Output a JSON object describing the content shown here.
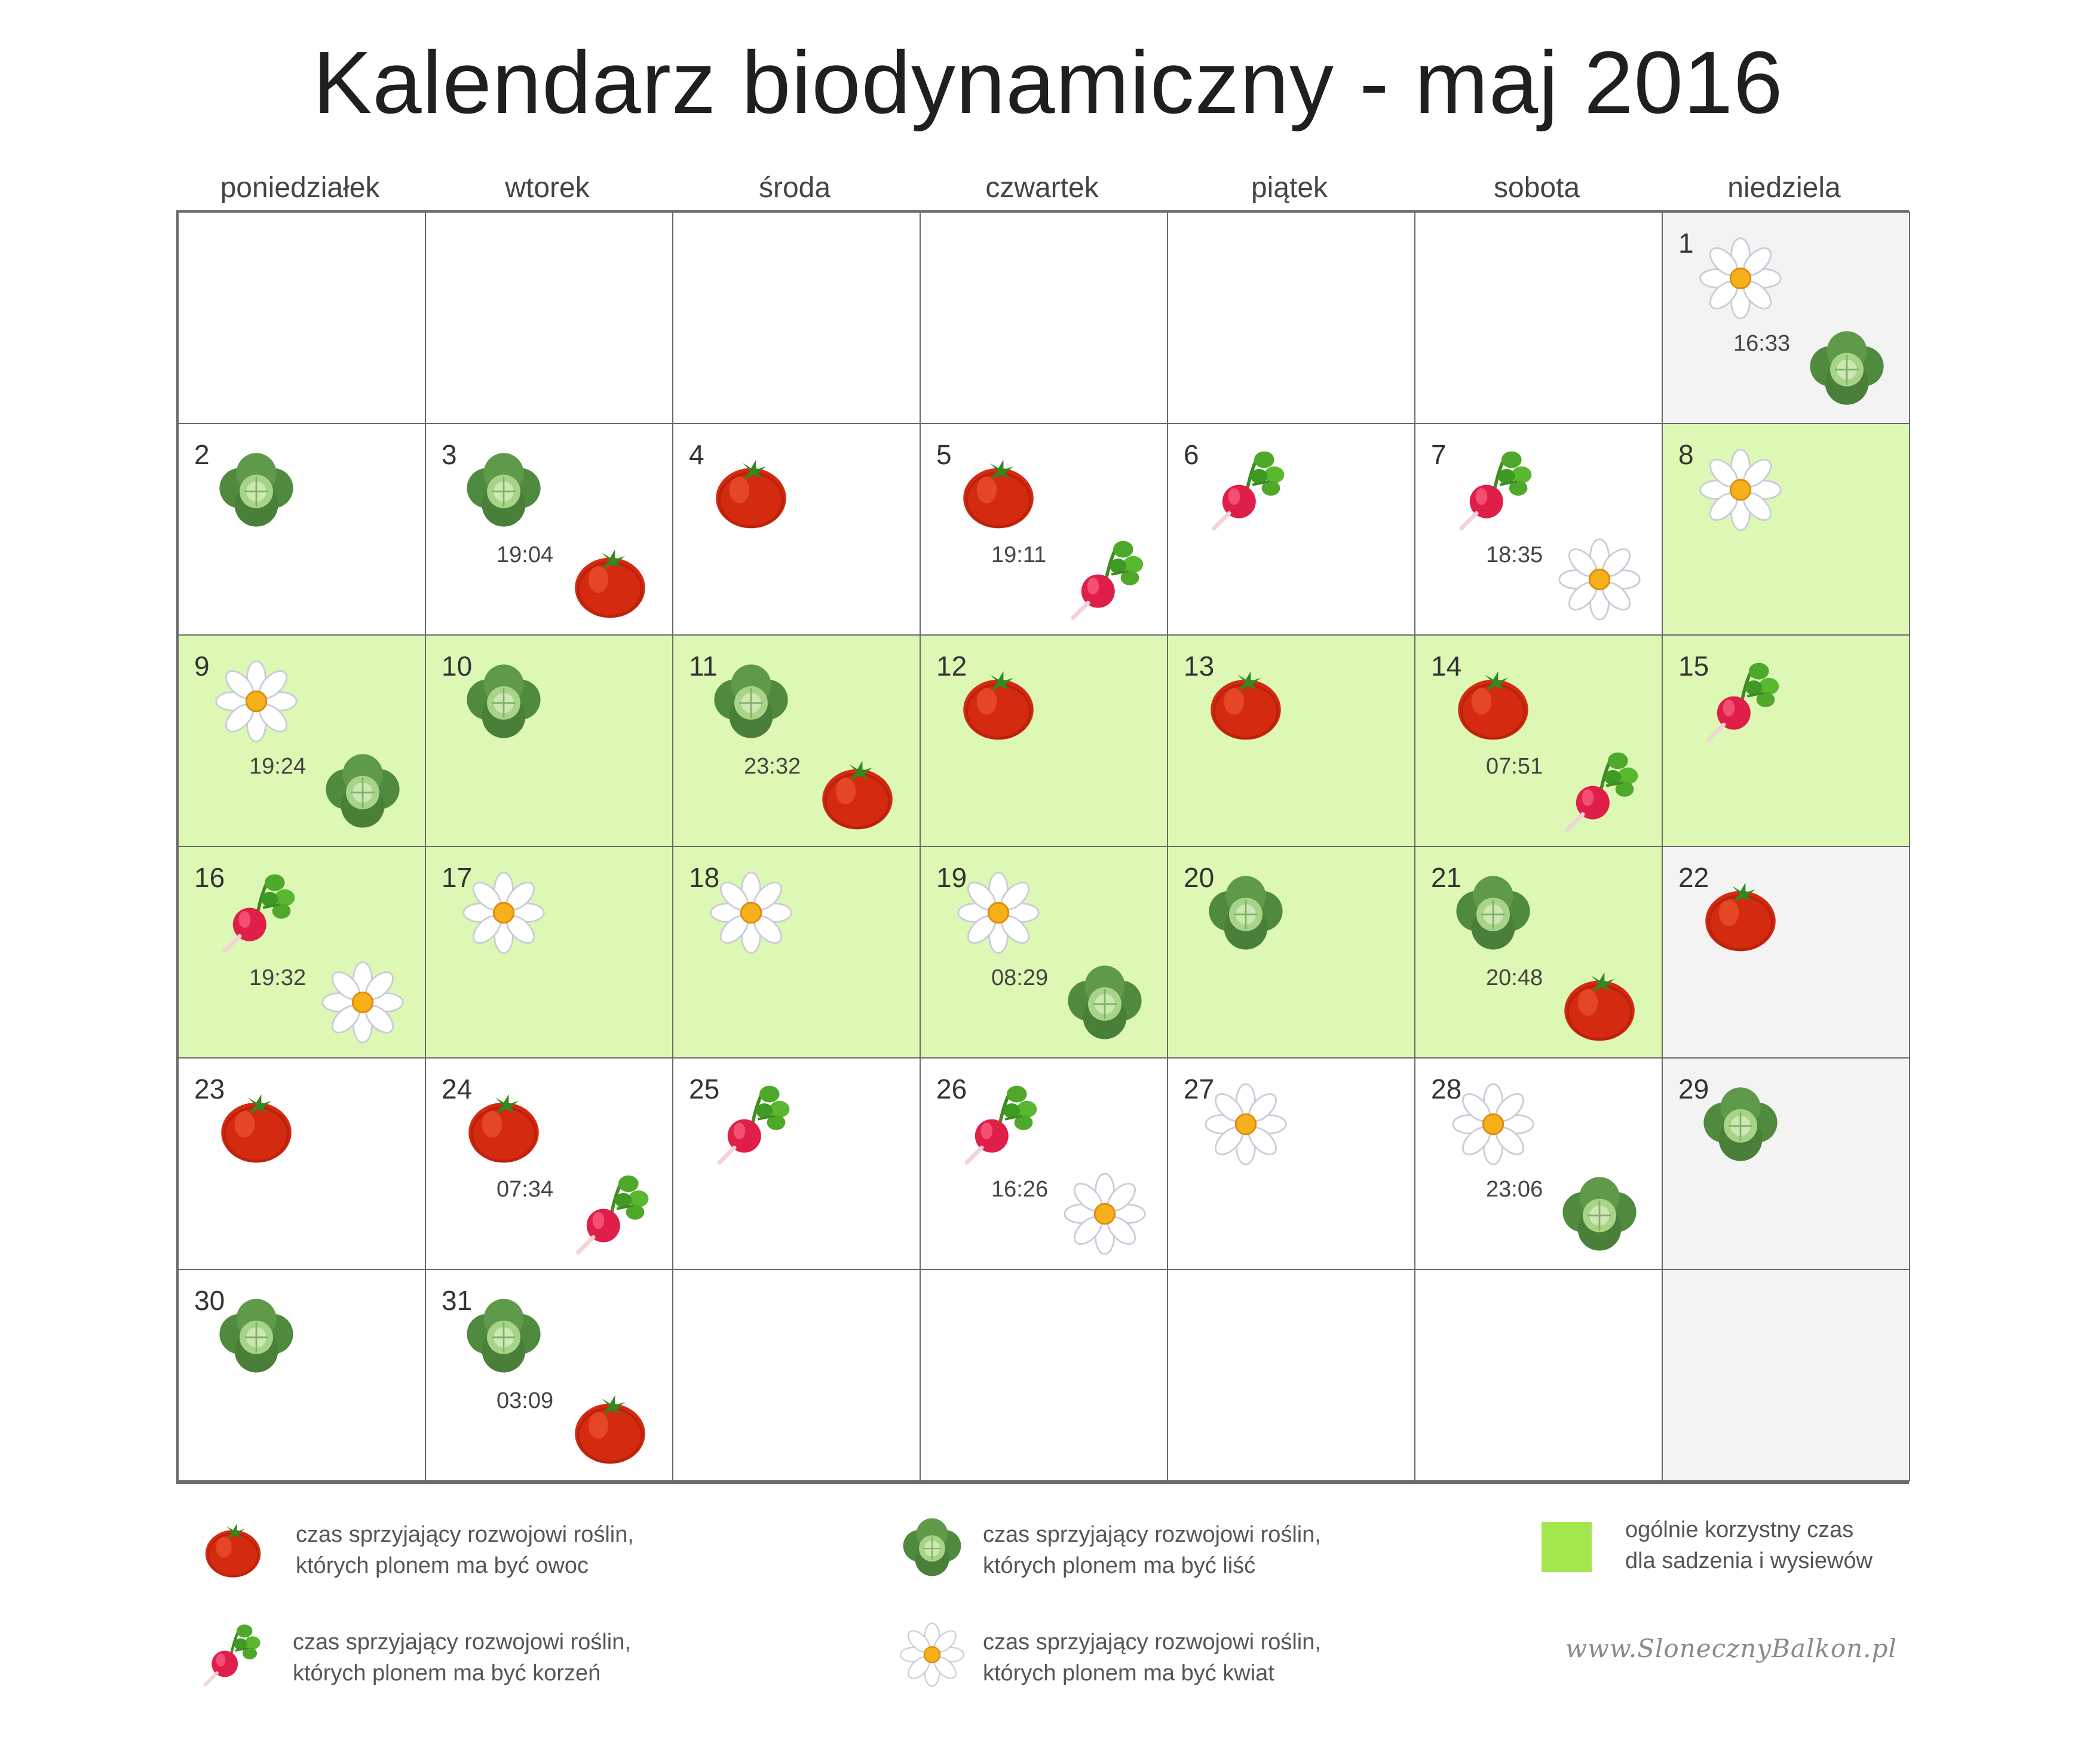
{
  "title": "Kalendarz biodynamiczny - maj 2016",
  "day_names": [
    "poniedziałek",
    "wtorek",
    "środa",
    "czwartek",
    "piątek",
    "sobota",
    "niedziela"
  ],
  "colors": {
    "favorable": "#dcf8b4",
    "sunday": "#f3f3f3",
    "legend_square": "#a4e64e",
    "border": "#6a6a6a"
  },
  "days": [
    {
      "n": "1",
      "col": 6,
      "row": 0,
      "bg": "sun",
      "icons": [
        "flower-icon",
        "leaf-icon"
      ],
      "time": "16:33"
    },
    {
      "n": "2",
      "col": 0,
      "row": 1,
      "bg": "",
      "icons": [
        "leaf-icon"
      ]
    },
    {
      "n": "3",
      "col": 1,
      "row": 1,
      "bg": "",
      "icons": [
        "leaf-icon",
        "fruit-icon"
      ],
      "time": "19:04"
    },
    {
      "n": "4",
      "col": 2,
      "row": 1,
      "bg": "",
      "icons": [
        "fruit-icon"
      ]
    },
    {
      "n": "5",
      "col": 3,
      "row": 1,
      "bg": "",
      "icons": [
        "fruit-icon",
        "root-icon"
      ],
      "time": "19:11"
    },
    {
      "n": "6",
      "col": 4,
      "row": 1,
      "bg": "",
      "icons": [
        "root-icon"
      ]
    },
    {
      "n": "7",
      "col": 5,
      "row": 1,
      "bg": "",
      "icons": [
        "root-icon",
        "flower-icon"
      ],
      "time": "18:35"
    },
    {
      "n": "8",
      "col": 6,
      "row": 1,
      "bg": "fav",
      "icons": [
        "flower-icon"
      ]
    },
    {
      "n": "9",
      "col": 0,
      "row": 2,
      "bg": "fav",
      "icons": [
        "flower-icon",
        "leaf-icon"
      ],
      "time": "19:24"
    },
    {
      "n": "10",
      "col": 1,
      "row": 2,
      "bg": "fav",
      "icons": [
        "leaf-icon"
      ]
    },
    {
      "n": "11",
      "col": 2,
      "row": 2,
      "bg": "fav",
      "icons": [
        "leaf-icon",
        "fruit-icon"
      ],
      "time": "23:32"
    },
    {
      "n": "12",
      "col": 3,
      "row": 2,
      "bg": "fav",
      "icons": [
        "fruit-icon"
      ]
    },
    {
      "n": "13",
      "col": 4,
      "row": 2,
      "bg": "fav",
      "icons": [
        "fruit-icon"
      ]
    },
    {
      "n": "14",
      "col": 5,
      "row": 2,
      "bg": "fav",
      "icons": [
        "fruit-icon",
        "root-icon"
      ],
      "time": "07:51"
    },
    {
      "n": "15",
      "col": 6,
      "row": 2,
      "bg": "fav",
      "icons": [
        "root-icon"
      ]
    },
    {
      "n": "16",
      "col": 0,
      "row": 3,
      "bg": "fav",
      "icons": [
        "root-icon",
        "flower-icon"
      ],
      "time": "19:32"
    },
    {
      "n": "17",
      "col": 1,
      "row": 3,
      "bg": "fav",
      "icons": [
        "flower-icon"
      ]
    },
    {
      "n": "18",
      "col": 2,
      "row": 3,
      "bg": "fav",
      "icons": [
        "flower-icon"
      ]
    },
    {
      "n": "19",
      "col": 3,
      "row": 3,
      "bg": "fav",
      "icons": [
        "flower-icon",
        "leaf-icon"
      ],
      "time": "08:29"
    },
    {
      "n": "20",
      "col": 4,
      "row": 3,
      "bg": "fav",
      "icons": [
        "leaf-icon"
      ]
    },
    {
      "n": "21",
      "col": 5,
      "row": 3,
      "bg": "fav",
      "icons": [
        "leaf-icon",
        "fruit-icon"
      ],
      "time": "20:48"
    },
    {
      "n": "22",
      "col": 6,
      "row": 3,
      "bg": "sun",
      "icons": [
        "fruit-icon"
      ]
    },
    {
      "n": "23",
      "col": 0,
      "row": 4,
      "bg": "",
      "icons": [
        "fruit-icon"
      ]
    },
    {
      "n": "24",
      "col": 1,
      "row": 4,
      "bg": "",
      "icons": [
        "fruit-icon",
        "root-icon"
      ],
      "time": "07:34"
    },
    {
      "n": "25",
      "col": 2,
      "row": 4,
      "bg": "",
      "icons": [
        "root-icon"
      ]
    },
    {
      "n": "26",
      "col": 3,
      "row": 4,
      "bg": "",
      "icons": [
        "root-icon",
        "flower-icon"
      ],
      "time": "16:26"
    },
    {
      "n": "27",
      "col": 4,
      "row": 4,
      "bg": "",
      "icons": [
        "flower-icon"
      ]
    },
    {
      "n": "28",
      "col": 5,
      "row": 4,
      "bg": "",
      "icons": [
        "flower-icon",
        "leaf-icon"
      ],
      "time": "23:06"
    },
    {
      "n": "29",
      "col": 6,
      "row": 4,
      "bg": "sun",
      "icons": [
        "leaf-icon"
      ]
    },
    {
      "n": "30",
      "col": 0,
      "row": 5,
      "bg": "",
      "icons": [
        "leaf-icon"
      ]
    },
    {
      "n": "31",
      "col": 1,
      "row": 5,
      "bg": "",
      "icons": [
        "leaf-icon",
        "fruit-icon"
      ],
      "time": "03:09"
    }
  ],
  "empty_cells": [
    {
      "col": 0,
      "row": 0,
      "bg": ""
    },
    {
      "col": 1,
      "row": 0,
      "bg": ""
    },
    {
      "col": 2,
      "row": 0,
      "bg": ""
    },
    {
      "col": 3,
      "row": 0,
      "bg": ""
    },
    {
      "col": 4,
      "row": 0,
      "bg": ""
    },
    {
      "col": 5,
      "row": 0,
      "bg": ""
    },
    {
      "col": 2,
      "row": 5,
      "bg": ""
    },
    {
      "col": 3,
      "row": 5,
      "bg": ""
    },
    {
      "col": 4,
      "row": 5,
      "bg": ""
    },
    {
      "col": 5,
      "row": 5,
      "bg": ""
    },
    {
      "col": 6,
      "row": 5,
      "bg": "sun"
    }
  ],
  "legend": {
    "fruit": {
      "icon": "fruit-icon",
      "line1": "czas sprzyjający rozwojowi roślin,",
      "line2": "których plonem ma być owoc"
    },
    "leaf": {
      "icon": "leaf-icon",
      "line1": "czas sprzyjający rozwojowi roślin,",
      "line2": "których plonem ma być liść"
    },
    "root": {
      "icon": "root-icon",
      "line1": "czas sprzyjający rozwojowi roślin,",
      "line2": "których plonem ma być korzeń"
    },
    "flower": {
      "icon": "flower-icon",
      "line1": "czas sprzyjający rozwojowi roślin,",
      "line2": "których plonem ma być kwiat"
    },
    "good": {
      "line1": "ogólnie korzystny czas",
      "line2": "dla sadzenia i wysiewów"
    }
  },
  "website": "www.SlonecznyBalkon.pl"
}
